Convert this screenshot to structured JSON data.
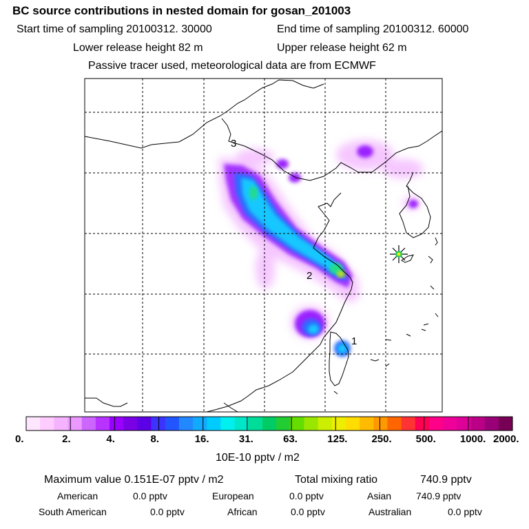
{
  "header": {
    "title": "BC  source contributions in nested domain for gosan_201003",
    "start_time": "Start time of sampling 20100312. 30000",
    "end_time": "End time of sampling 20100312. 60000",
    "lower_release": "Lower release height   82 m",
    "upper_release": "Upper release height   62 m",
    "tracer_note": "Passive tracer used, meteorological data are from ECMWF"
  },
  "map": {
    "source_labels": [
      "1",
      "2",
      "3"
    ],
    "receptor": "gosan"
  },
  "legend": {
    "ticks": [
      "0.",
      "2.",
      "4.",
      "8.",
      "16.",
      "31.",
      "63.",
      "125.",
      "250.",
      "500.",
      "1000.",
      "2000."
    ],
    "colors": [
      "#ffe6ff",
      "#ffccff",
      "#f5b3ff",
      "#eb99ff",
      "#cc66ff",
      "#b833ff",
      "#9900ff",
      "#7a00e6",
      "#5c00e6",
      "#3d33ff",
      "#2255ff",
      "#2288ff",
      "#11aaff",
      "#00ccff",
      "#00f0f0",
      "#00e6c8",
      "#00dd99",
      "#00cc66",
      "#22cc33",
      "#66dd00",
      "#99e600",
      "#ccee00",
      "#eeee00",
      "#ffdd00",
      "#ffbb00",
      "#ff9900",
      "#ff6600",
      "#ff3333",
      "#ff0055",
      "#ff0088",
      "#ee0099",
      "#dd0099",
      "#bb0088",
      "#990077",
      "#770055"
    ],
    "unit": "10E-10 pptv / m2"
  },
  "stats": {
    "max_label": "Maximum value  0.151E-07 pptv / m2",
    "total_label": "Total mixing ratio",
    "total_value": "740.9 pptv",
    "american_label": "American",
    "american_value": "0.0 pptv",
    "european_label": "European",
    "european_value": "0.0 pptv",
    "asian_label": "Asian",
    "asian_value": "740.9 pptv",
    "south_american_label": "South American",
    "south_american_value": "0.0 pptv",
    "african_label": "African",
    "african_value": "0.0 pptv",
    "australian_label": "Australian",
    "australian_value": "0.0 pptv"
  }
}
